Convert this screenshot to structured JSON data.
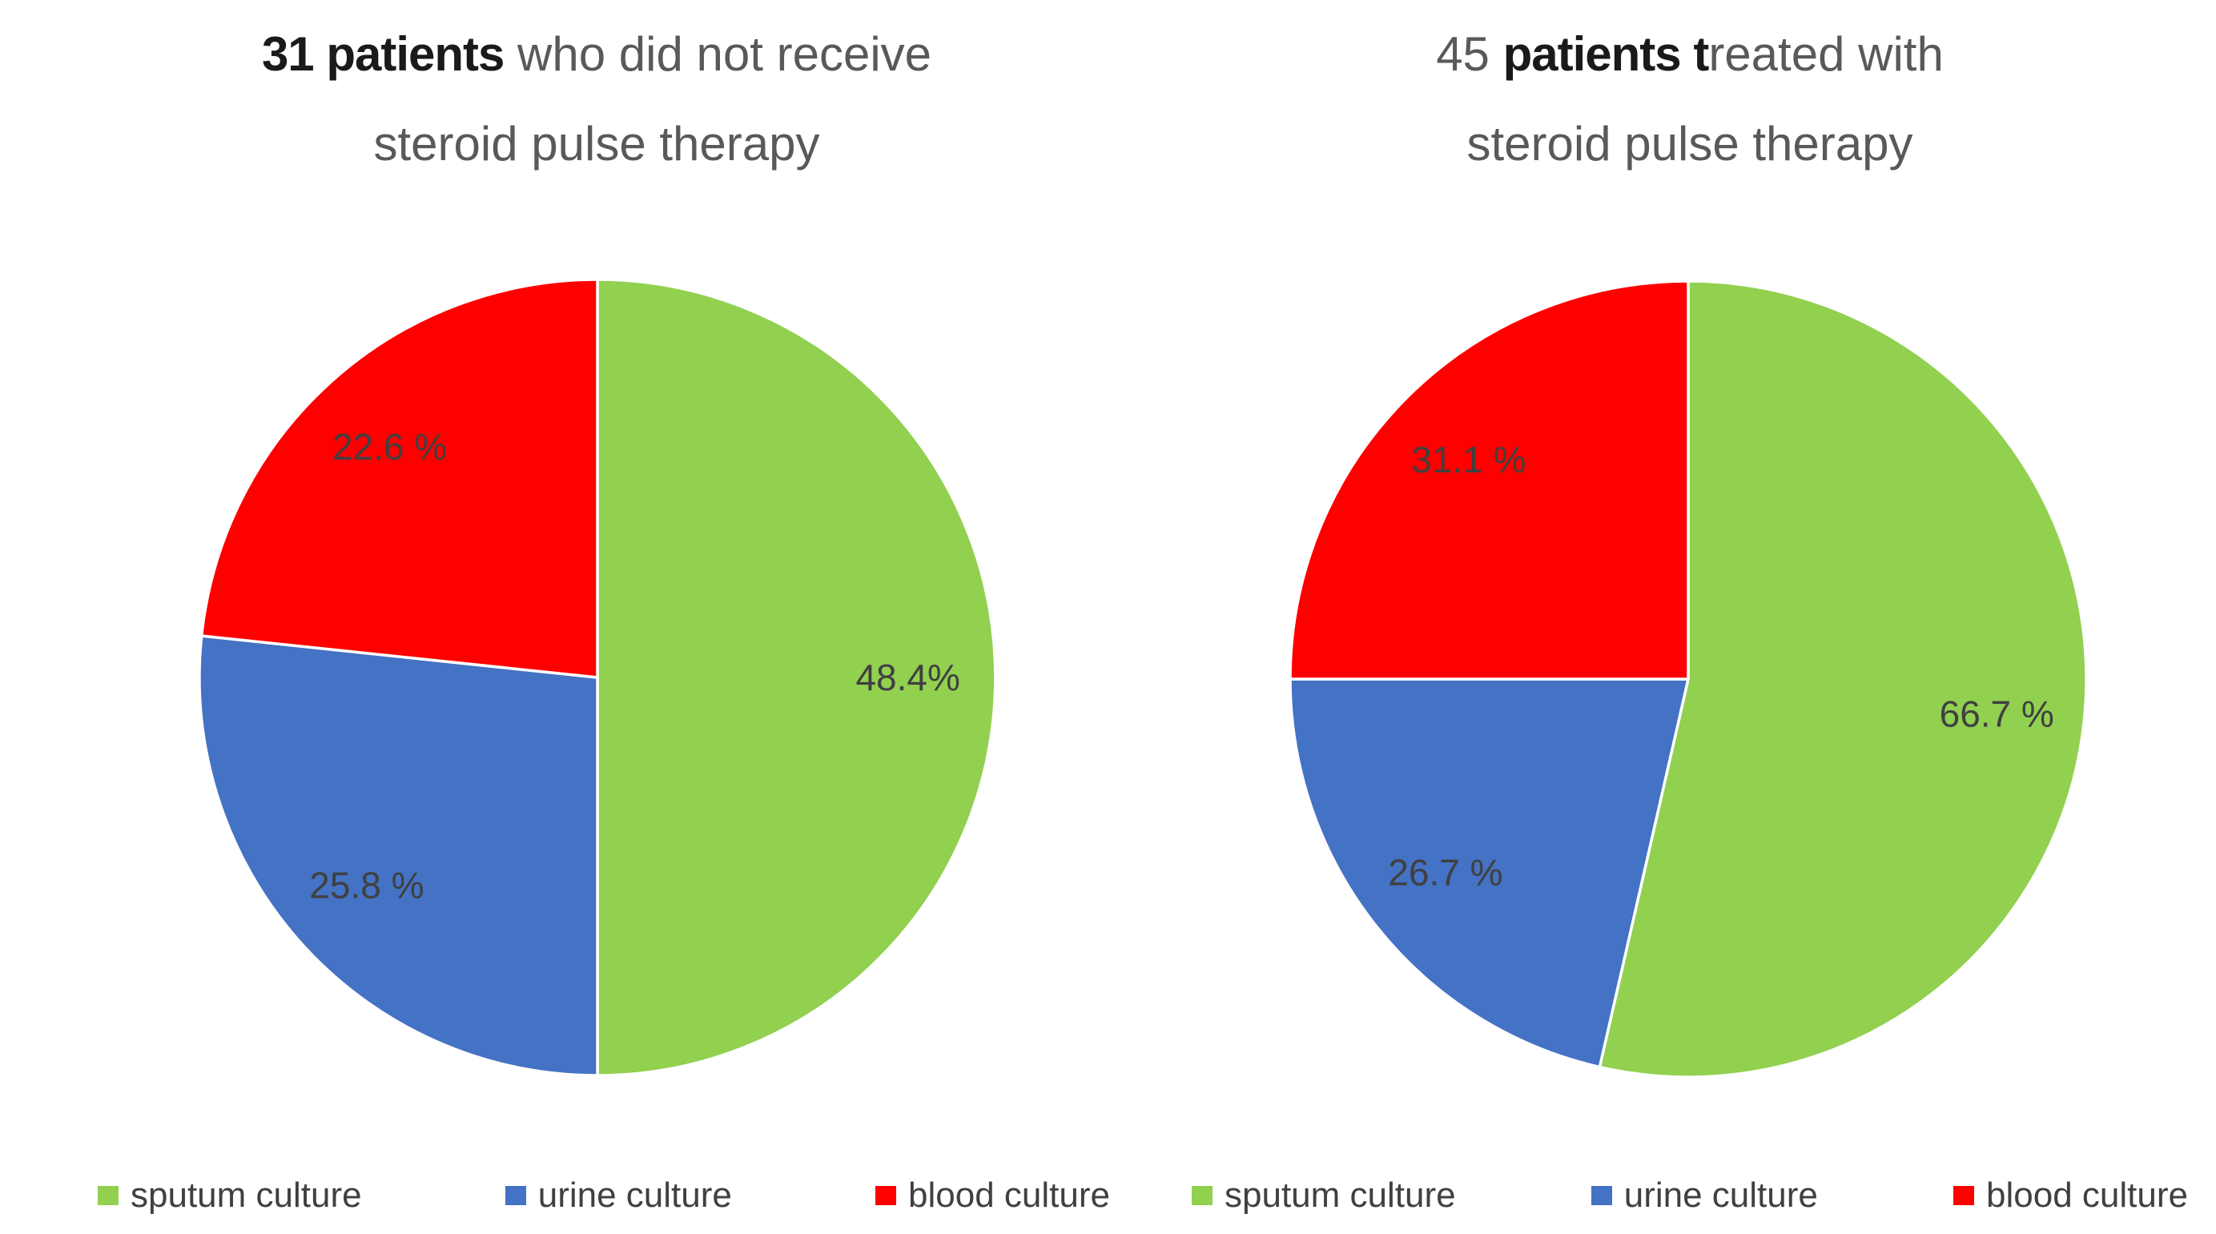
{
  "page": {
    "background_color": "#ffffff",
    "text_dark": "#1a1a1a",
    "text_gray": "#595959",
    "label_color": "#404040",
    "slice_separator_color": "#ffffff"
  },
  "charts": [
    {
      "title": {
        "line1_segments": [
          {
            "text": "31 patients",
            "emphasis": true
          },
          {
            "text": " who did not receive",
            "emphasis": false
          }
        ],
        "line2": "steroid pulse therapy"
      },
      "legend": [
        {
          "label": "sputum culture",
          "color": "#92d050"
        },
        {
          "label": "urine culture",
          "color": "#4472c4"
        },
        {
          "label": "blood culture",
          "color": "#ff0000"
        }
      ],
      "chart_data": {
        "type": "pie",
        "title": "31 patients who did not receive steroid pulse therapy",
        "legend_position": "bottom",
        "start_angle_deg": 0,
        "direction": "clockwise",
        "slices": [
          {
            "label": "sputum culture",
            "display_pct": "48.4%",
            "value_pct": 48.4,
            "arc_fraction": 0.5,
            "color": "#92d050"
          },
          {
            "label": "urine culture",
            "display_pct": "25.8 %",
            "value_pct": 25.8,
            "arc_fraction": 0.266667,
            "color": "#4472c4"
          },
          {
            "label": "blood culture",
            "display_pct": "22.6 %",
            "value_pct": 22.6,
            "arc_fraction": 0.233333,
            "color": "#ff0000"
          }
        ]
      }
    },
    {
      "title": {
        "line1_segments": [
          {
            "text": "45 ",
            "emphasis": false
          },
          {
            "text": "patients t",
            "emphasis": true
          },
          {
            "text": "reated with",
            "emphasis": false
          }
        ],
        "line2": "steroid pulse therapy"
      },
      "legend": [
        {
          "label": "sputum culture",
          "color": "#92d050"
        },
        {
          "label": "urine culture",
          "color": "#4472c4"
        },
        {
          "label": "blood culture",
          "color": "#ff0000"
        }
      ],
      "chart_data": {
        "type": "pie",
        "title": "45 patients treated with steroid pulse therapy",
        "legend_position": "bottom",
        "start_angle_deg": 0,
        "direction": "clockwise",
        "slices": [
          {
            "label": "sputum culture",
            "display_pct": "66.7 %",
            "value_pct": 66.7,
            "arc_fraction": 0.535714,
            "color": "#92d050"
          },
          {
            "label": "urine culture",
            "display_pct": "26.7 %",
            "value_pct": 26.7,
            "arc_fraction": 0.214286,
            "color": "#4472c4"
          },
          {
            "label": "blood culture",
            "display_pct": "31.1 %",
            "value_pct": 31.1,
            "arc_fraction": 0.25,
            "color": "#ff0000"
          }
        ]
      }
    }
  ]
}
